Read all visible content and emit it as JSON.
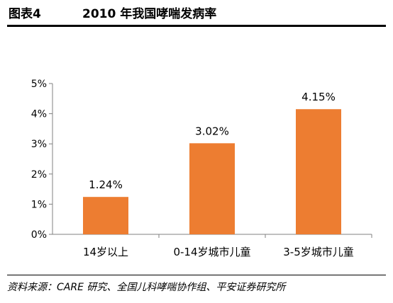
{
  "header": {
    "figure_label": "图表4",
    "title": "2010 年我国哮喘发病率"
  },
  "chart_data": {
    "type": "bar",
    "categories": [
      "14岁以上",
      "0-14岁城市儿童",
      "3-5岁城市儿童"
    ],
    "values": [
      1.24,
      3.02,
      4.15
    ],
    "data_labels": [
      "1.24%",
      "3.02%",
      "4.15%"
    ],
    "y_ticks": [
      "0%",
      "1%",
      "2%",
      "3%",
      "4%",
      "5%"
    ],
    "ylim": [
      0,
      5
    ],
    "grid": false,
    "legend": "none",
    "bar_color": "#ED7D31"
  },
  "footer": {
    "source": "资料来源：CARE 研究、全国儿科哮喘协作组、平安证券研究所"
  }
}
